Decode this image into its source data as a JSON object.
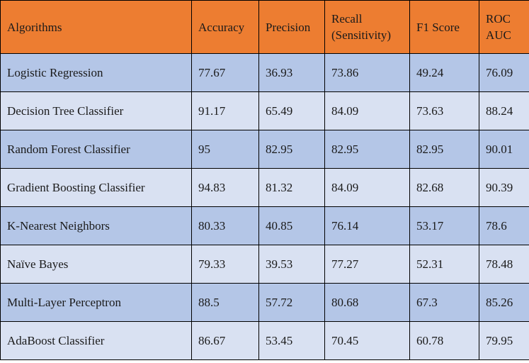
{
  "table": {
    "headers": [
      "Algorithms",
      "Accuracy",
      "Precision",
      "Recall (Sensitivity)",
      "F1 Score",
      "ROC AUC"
    ],
    "rows": [
      [
        "Logistic Regression",
        "77.67",
        "36.93",
        "73.86",
        "49.24",
        "76.09"
      ],
      [
        "Decision Tree Classifier",
        "91.17",
        "65.49",
        "84.09",
        "73.63",
        "88.24"
      ],
      [
        "Random Forest Classifier",
        "95",
        "82.95",
        "82.95",
        "82.95",
        "90.01"
      ],
      [
        "Gradient Boosting Classifier",
        "94.83",
        "81.32",
        "84.09",
        "82.68",
        "90.39"
      ],
      [
        "K-Nearest Neighbors",
        "80.33",
        "40.85",
        "76.14",
        "53.17",
        "78.6"
      ],
      [
        "Naïve Bayes",
        "79.33",
        "39.53",
        "77.27",
        "52.31",
        "78.48"
      ],
      [
        "Multi-Layer Perceptron",
        "88.5",
        "57.72",
        "80.68",
        "67.3",
        "85.26"
      ],
      [
        "AdaBoost Classifier",
        "86.67",
        "53.45",
        "70.45",
        "60.78",
        "79.95"
      ]
    ]
  },
  "colors": {
    "header_bg": "#ed7d31",
    "row_odd_bg": "#b4c6e7",
    "row_even_bg": "#d9e1f2",
    "border": "#000000"
  }
}
